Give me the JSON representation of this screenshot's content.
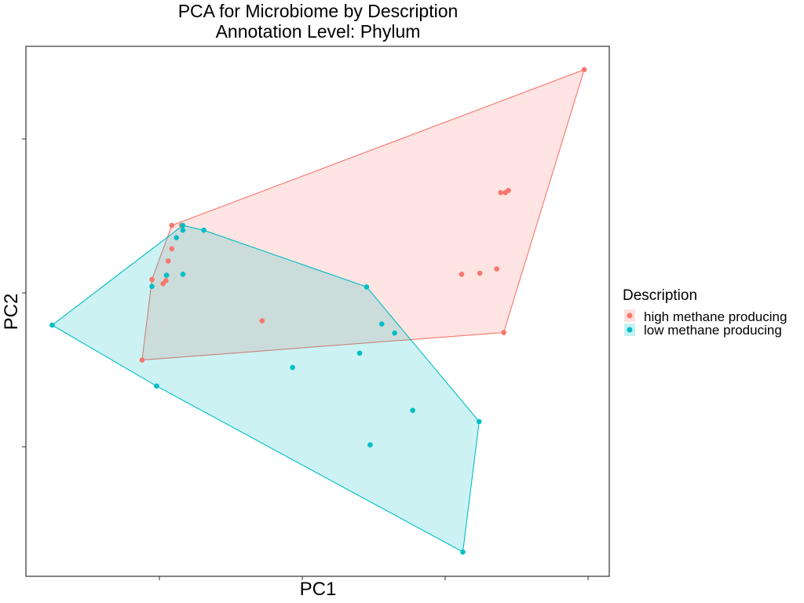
{
  "chart_data": {
    "type": "scatter",
    "title": "PCA for Microbiome by Description",
    "subtitle": "Annotation Level: Phylum",
    "xlabel": "PC1",
    "ylabel": "PC2",
    "xlim": [
      0,
      100
    ],
    "ylim": [
      0,
      100
    ],
    "grid": false,
    "legend": {
      "title": "Description",
      "placement": "right"
    },
    "series": [
      {
        "name": "high methane producing",
        "color": "#F8766D",
        "hull": true,
        "points": [
          [
            25.0,
            66.2
          ],
          [
            26.7,
            66.2
          ],
          [
            25.0,
            61.8
          ],
          [
            24.4,
            59.5
          ],
          [
            21.6,
            56.0
          ],
          [
            24.1,
            56.8
          ],
          [
            24.0,
            55.8
          ],
          [
            23.5,
            55.2
          ],
          [
            40.5,
            48.2
          ],
          [
            19.9,
            40.8
          ],
          [
            81.4,
            72.4
          ],
          [
            82.2,
            72.4
          ],
          [
            82.7,
            72.8
          ],
          [
            80.7,
            58.0
          ],
          [
            77.8,
            57.2
          ],
          [
            74.7,
            57.0
          ],
          [
            81.9,
            46.0
          ],
          [
            95.7,
            95.6
          ]
        ]
      },
      {
        "name": "low methane producing",
        "color": "#00BFC4",
        "hull": true,
        "points": [
          [
            26.9,
            66.2
          ],
          [
            26.9,
            65.3
          ],
          [
            25.8,
            63.9
          ],
          [
            30.5,
            65.3
          ],
          [
            24.1,
            56.8
          ],
          [
            26.9,
            57.0
          ],
          [
            21.6,
            54.7
          ],
          [
            58.4,
            54.6
          ],
          [
            4.5,
            47.4
          ],
          [
            61.0,
            47.6
          ],
          [
            63.2,
            45.9
          ],
          [
            57.2,
            42.1
          ],
          [
            45.7,
            39.4
          ],
          [
            22.4,
            35.9
          ],
          [
            66.3,
            31.3
          ],
          [
            77.7,
            29.2
          ],
          [
            59.0,
            24.8
          ],
          [
            74.9,
            4.6
          ]
        ]
      }
    ]
  }
}
